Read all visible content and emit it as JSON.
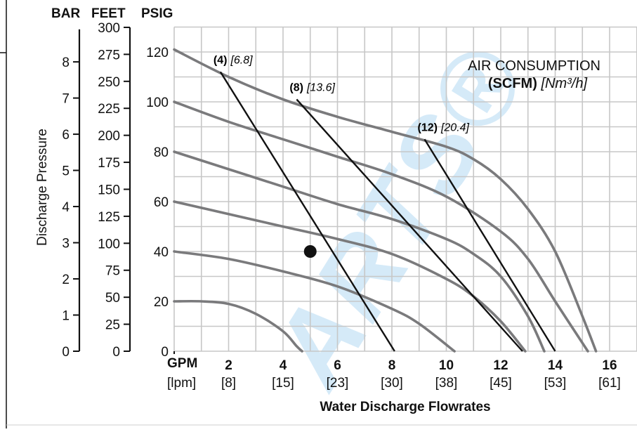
{
  "chart_data": {
    "type": "line",
    "title": "AIR CONSUMPTION",
    "subtitle_bold": "(SCFM)",
    "subtitle_italic": "[Nm³/h]",
    "xlabel": "Water Discharge Flowrates",
    "ylabel": "Discharge Pressure",
    "x_unit_primary": "GPM",
    "x_unit_secondary": "[lpm]",
    "x_ticks": [
      {
        "gpm": 2,
        "label": "2",
        "sub": "[8]"
      },
      {
        "gpm": 4,
        "label": "4",
        "sub": "[15]"
      },
      {
        "gpm": 6,
        "label": "6",
        "sub": "[23]"
      },
      {
        "gpm": 8,
        "label": "8",
        "sub": "[30]"
      },
      {
        "gpm": 10,
        "label": "10",
        "sub": "[38]"
      },
      {
        "gpm": 12,
        "label": "12",
        "sub": "[45]"
      },
      {
        "gpm": 14,
        "label": "14",
        "sub": "[53]"
      },
      {
        "gpm": 16,
        "label": "16",
        "sub": "[61]"
      }
    ],
    "xlim": [
      0,
      17
    ],
    "ylim_psig": [
      0,
      120
    ],
    "axes": {
      "psig": {
        "header": "PSIG",
        "ticks": [
          0,
          20,
          40,
          60,
          80,
          100,
          120
        ]
      },
      "feet": {
        "header": "FEET",
        "ticks": [
          0,
          25,
          50,
          75,
          100,
          125,
          150,
          175,
          200,
          225,
          250,
          275,
          300
        ]
      },
      "bar": {
        "header": "BAR",
        "ticks": [
          0,
          1,
          2,
          3,
          4,
          5,
          6,
          7,
          8
        ]
      }
    },
    "grid": true,
    "performance_curves": [
      {
        "points": [
          [
            0,
            121
          ],
          [
            2,
            110
          ],
          [
            4,
            101
          ],
          [
            6,
            94
          ],
          [
            8,
            88
          ],
          [
            10,
            82
          ],
          [
            11,
            77
          ],
          [
            12,
            69
          ],
          [
            13,
            57
          ],
          [
            14,
            40
          ],
          [
            15,
            14
          ],
          [
            15.5,
            0
          ]
        ]
      },
      {
        "points": [
          [
            0,
            100
          ],
          [
            2,
            92
          ],
          [
            4,
            85
          ],
          [
            6,
            78
          ],
          [
            8,
            71
          ],
          [
            10,
            62
          ],
          [
            12,
            48
          ],
          [
            13,
            37
          ],
          [
            14,
            20
          ],
          [
            15.2,
            0
          ]
        ]
      },
      {
        "points": [
          [
            0,
            80
          ],
          [
            2,
            73
          ],
          [
            4,
            66
          ],
          [
            6,
            59
          ],
          [
            8,
            53
          ],
          [
            10,
            45
          ],
          [
            11,
            39
          ],
          [
            12,
            30
          ],
          [
            13,
            14
          ],
          [
            13.6,
            0
          ]
        ]
      },
      {
        "points": [
          [
            0,
            60
          ],
          [
            2,
            55
          ],
          [
            4,
            50
          ],
          [
            6,
            45
          ],
          [
            8,
            39
          ],
          [
            10,
            29
          ],
          [
            11,
            22
          ],
          [
            12,
            12
          ],
          [
            12.9,
            0
          ]
        ]
      },
      {
        "points": [
          [
            0,
            40
          ],
          [
            2,
            37
          ],
          [
            4,
            32
          ],
          [
            6,
            26
          ],
          [
            8,
            17
          ],
          [
            9,
            11
          ],
          [
            10.3,
            0
          ]
        ]
      },
      {
        "points": [
          [
            0,
            20
          ],
          [
            1,
            20
          ],
          [
            2,
            19
          ],
          [
            3,
            15
          ],
          [
            4,
            8
          ],
          [
            4.5,
            2
          ],
          [
            4.7,
            0
          ]
        ]
      }
    ],
    "air_consumption_lines": [
      {
        "label": "(4)",
        "label_metric": "[6.8]",
        "start": [
          1.7,
          112
        ],
        "end": [
          8.1,
          0
        ]
      },
      {
        "label": "(8)",
        "label_metric": "[13.6]",
        "start": [
          4.5,
          101
        ],
        "end": [
          12.8,
          0
        ]
      },
      {
        "label": "(12)",
        "label_metric": "[20.4]",
        "start": [
          9.2,
          85
        ],
        "end": [
          14.0,
          0
        ]
      }
    ],
    "operating_point": {
      "gpm": 5.0,
      "psig": 40
    }
  },
  "watermark": "ARTS®"
}
